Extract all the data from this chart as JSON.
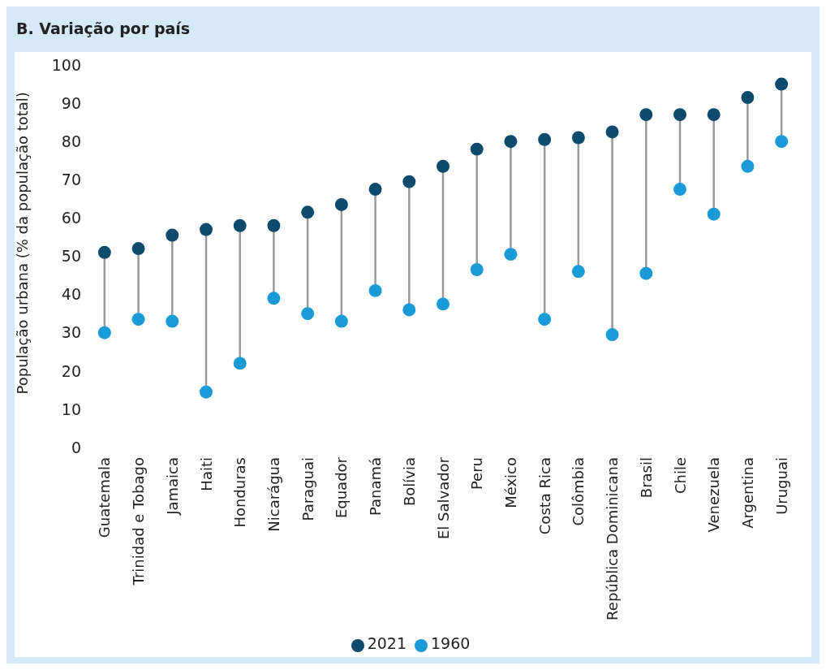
{
  "chart_data": {
    "type": "scatter",
    "title": "B. Variação por país",
    "ylabel": "População urbana (% da população total)",
    "categories": [
      "Guatemala",
      "Trinidad e Tobago",
      "Jamaica",
      "Haiti",
      "Honduras",
      "Nicarágua",
      "Paraguai",
      "Equador",
      "Panamá",
      "Bolívia",
      "El Salvador",
      "Peru",
      "México",
      "Costa Rica",
      "Colômbia",
      "República Dominicana",
      "Brasil",
      "Chile",
      "Venezuela",
      "Argentina",
      "Uruguai"
    ],
    "series": [
      {
        "name": "2021",
        "color": "#0d4a6b",
        "values": [
          51,
          52,
          55.5,
          57,
          58,
          58,
          61.5,
          63.5,
          67.5,
          69.5,
          73.5,
          78,
          80,
          80.5,
          81,
          82.5,
          87,
          87,
          87,
          91.5,
          95
        ]
      },
      {
        "name": "1960",
        "color": "#1a9ad6",
        "values": [
          30,
          33.5,
          33,
          14.5,
          22,
          39,
          35,
          33,
          41,
          36,
          37.5,
          46.5,
          50.5,
          33.5,
          46,
          29.5,
          45.5,
          67.5,
          61,
          73.5,
          80
        ]
      }
    ],
    "ylim": [
      0,
      100
    ],
    "yticks": [
      0,
      10,
      20,
      30,
      40,
      50,
      60,
      70,
      80,
      90,
      100
    ],
    "grid": false,
    "legend": "bottom",
    "marker": "circle"
  }
}
